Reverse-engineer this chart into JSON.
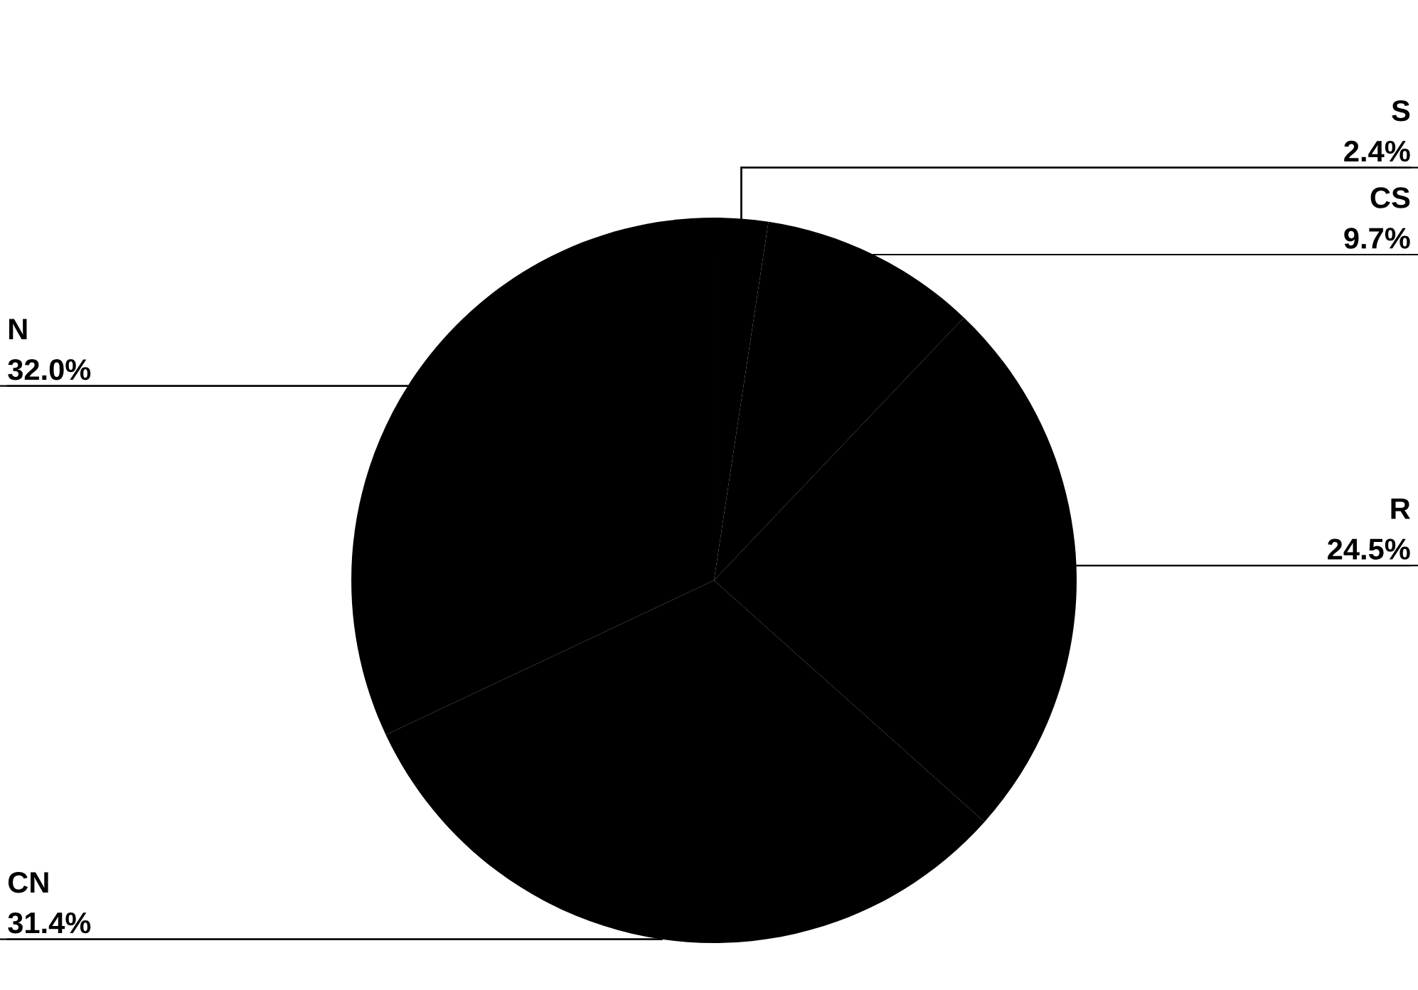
{
  "chart_data": {
    "type": "pie",
    "categories": [
      "S",
      "CS",
      "R",
      "CN",
      "N"
    ],
    "values": [
      2.4,
      9.7,
      24.5,
      31.4,
      32.0
    ],
    "colors": [
      "#000000",
      "#000000",
      "#000000",
      "#000000",
      "#000000"
    ],
    "value_labels": [
      "2.4%",
      "9.7%",
      "24.5%",
      "31.4%",
      "32.0%"
    ]
  }
}
